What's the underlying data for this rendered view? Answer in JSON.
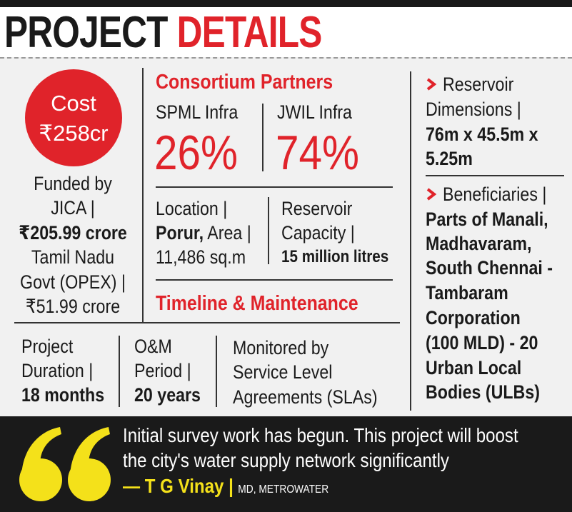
{
  "header": {
    "title_black": "PROJECT",
    "title_red": "DETAILS"
  },
  "cost": {
    "label": "Cost",
    "amount": "₹258cr"
  },
  "funding": {
    "lines": [
      "Funded by",
      "JICA |",
      "₹205.99 crore",
      "Tamil Nadu",
      "Govt (OPEX) |",
      "₹51.99 crore"
    ]
  },
  "consortium": {
    "heading": "Consortium Partners",
    "partners": [
      {
        "name": "SPML Infra",
        "share": "26%"
      },
      {
        "name": "JWIL Infra",
        "share": "74%"
      }
    ]
  },
  "location": {
    "line1": "Location |",
    "line2_bold": "Porur,",
    "line2_rest": "Area |",
    "line3": "11,486 sq.m"
  },
  "capacity": {
    "line1": "Reservoir",
    "line2": "Capacity |",
    "value": "15 million litres"
  },
  "timeline": {
    "heading": "Timeline & Maintenance",
    "duration": {
      "line1": "Project",
      "line2": "Duration |",
      "value": "18 months"
    },
    "om": {
      "line1": "O&M",
      "line2": "Period |",
      "value": "20 years"
    },
    "monitoring": {
      "lines": [
        "Monitored by",
        "Service Level",
        "Agreements (SLAs)"
      ]
    }
  },
  "dimensions": {
    "lines": [
      "Reservoir",
      "Dimensions |"
    ],
    "values": [
      "76m x 45.5m x",
      "5.25m"
    ]
  },
  "beneficiaries": {
    "label": "Beneficiaries |",
    "values": [
      "Parts of Manali,",
      "Madhavaram,",
      "South Chennai -",
      "Tambaram",
      "Corporation",
      "(100 MLD) - 20",
      "Urban Local",
      "Bodies (ULBs)"
    ]
  },
  "quote": {
    "lines": [
      "Initial survey work has begun. This project will boost",
      "the city's water supply network significantly"
    ],
    "author": "— T G Vinay |",
    "role": "MD, METROWATER"
  }
}
